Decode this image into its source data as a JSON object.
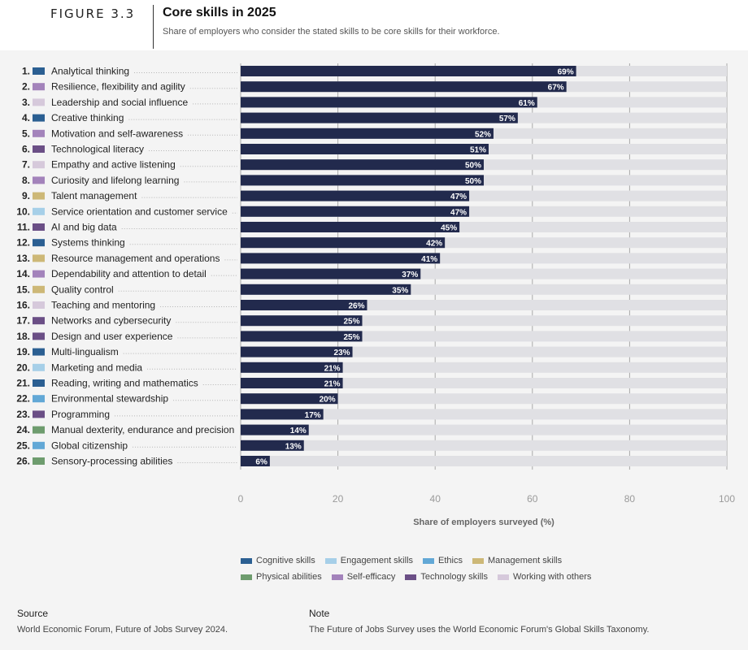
{
  "header": {
    "figure_label": "FIGURE 3.3",
    "title": "Core skills in 2025",
    "subtitle": "Share of employers who consider the stated skills to be core skills for their workforce."
  },
  "colors": {
    "Cognitive skills": "#2b5f92",
    "Engagement skills": "#a6cfe8",
    "Ethics": "#62a8d6",
    "Management skills": "#cdb877",
    "Physical abilities": "#6e9c6e",
    "Self-efficacy": "#a383bb",
    "Technology skills": "#6b4f86",
    "Working with others": "#d6c9db",
    "bar": "#222a4d",
    "track": "#e0e0e4",
    "grid": "#a9a9a9"
  },
  "chart_data": {
    "type": "bar",
    "orientation": "horizontal",
    "title": "Core skills in 2025",
    "xlabel": "Share of employers surveyed (%)",
    "xlim": [
      0,
      100
    ],
    "xticks": [
      0,
      20,
      40,
      60,
      80,
      100
    ],
    "grid": true,
    "rows": [
      {
        "rank": "1.",
        "label": "Analytical thinking",
        "value": 69,
        "category": "Cognitive skills"
      },
      {
        "rank": "2.",
        "label": "Resilience, flexibility and agility",
        "value": 67,
        "category": "Self-efficacy"
      },
      {
        "rank": "3.",
        "label": "Leadership and social influence",
        "value": 61,
        "category": "Working with others"
      },
      {
        "rank": "4.",
        "label": "Creative thinking",
        "value": 57,
        "category": "Cognitive skills"
      },
      {
        "rank": "5.",
        "label": "Motivation and self-awareness",
        "value": 52,
        "category": "Self-efficacy"
      },
      {
        "rank": "6.",
        "label": "Technological literacy",
        "value": 51,
        "category": "Technology skills"
      },
      {
        "rank": "7.",
        "label": "Empathy and active listening",
        "value": 50,
        "category": "Working with others"
      },
      {
        "rank": "8.",
        "label": "Curiosity and lifelong learning",
        "value": 50,
        "category": "Self-efficacy"
      },
      {
        "rank": "9.",
        "label": "Talent management",
        "value": 47,
        "category": "Management skills"
      },
      {
        "rank": "10.",
        "label": "Service orientation and customer service",
        "value": 47,
        "category": "Engagement skills"
      },
      {
        "rank": "11.",
        "label": "AI and big data",
        "value": 45,
        "category": "Technology skills"
      },
      {
        "rank": "12.",
        "label": "Systems thinking",
        "value": 42,
        "category": "Cognitive skills"
      },
      {
        "rank": "13.",
        "label": "Resource management and operations",
        "value": 41,
        "category": "Management skills"
      },
      {
        "rank": "14.",
        "label": "Dependability and attention to detail",
        "value": 37,
        "category": "Self-efficacy"
      },
      {
        "rank": "15.",
        "label": "Quality control",
        "value": 35,
        "category": "Management skills"
      },
      {
        "rank": "16.",
        "label": "Teaching and mentoring",
        "value": 26,
        "category": "Working with others"
      },
      {
        "rank": "17.",
        "label": "Networks and cybersecurity",
        "value": 25,
        "category": "Technology skills"
      },
      {
        "rank": "18.",
        "label": "Design and user experience",
        "value": 25,
        "category": "Technology skills"
      },
      {
        "rank": "19.",
        "label": "Multi-lingualism",
        "value": 23,
        "category": "Cognitive skills"
      },
      {
        "rank": "20.",
        "label": "Marketing and media",
        "value": 21,
        "category": "Engagement skills"
      },
      {
        "rank": "21.",
        "label": "Reading, writing and mathematics",
        "value": 21,
        "category": "Cognitive skills"
      },
      {
        "rank": "22.",
        "label": "Environmental stewardship",
        "value": 20,
        "category": "Ethics"
      },
      {
        "rank": "23.",
        "label": "Programming",
        "value": 17,
        "category": "Technology skills"
      },
      {
        "rank": "24.",
        "label": "Manual dexterity, endurance and precision",
        "value": 14,
        "category": "Physical abilities"
      },
      {
        "rank": "25.",
        "label": "Global citizenship",
        "value": 13,
        "category": "Ethics"
      },
      {
        "rank": "26.",
        "label": "Sensory-processing abilities",
        "value": 6,
        "category": "Physical abilities"
      }
    ],
    "legend": [
      [
        "Cognitive skills",
        "Engagement skills",
        "Ethics",
        "Management skills"
      ],
      [
        "Physical abilities",
        "Self-efficacy",
        "Technology skills",
        "Working with others"
      ]
    ]
  },
  "footer": {
    "source_heading": "Source",
    "source_text": "World Economic Forum, Future of Jobs Survey 2024.",
    "note_heading": "Note",
    "note_text": "The Future of Jobs Survey uses the World Economic Forum's Global Skills Taxonomy."
  }
}
